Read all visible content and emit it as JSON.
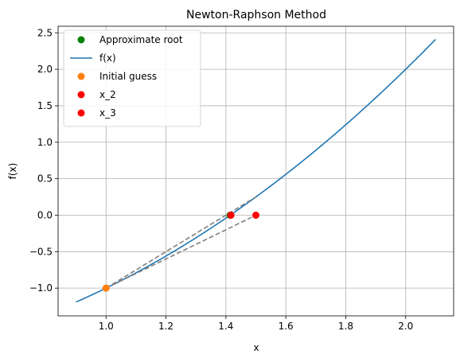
{
  "chart_data": {
    "type": "line",
    "title": "Newton-Raphson Method",
    "xlabel": "x",
    "ylabel": "f(x)",
    "xlim": [
      0.84,
      2.16
    ],
    "ylim": [
      -1.38,
      2.59
    ],
    "grid": true,
    "legend_position": "top-left",
    "x_ticks": [
      1.0,
      1.2,
      1.4,
      1.6,
      1.8,
      2.0
    ],
    "x_tick_labels": [
      "1.0",
      "1.2",
      "1.4",
      "1.6",
      "1.8",
      "2.0"
    ],
    "y_ticks": [
      -1.0,
      -0.5,
      0.0,
      0.5,
      1.0,
      1.5,
      2.0,
      2.5
    ],
    "y_tick_labels": [
      "−1.0",
      "−0.5",
      "0.0",
      "0.5",
      "1.0",
      "1.5",
      "2.0",
      "2.5"
    ],
    "curve": {
      "name": "f(x)",
      "color": "#1f77b4",
      "function": "x^2 - 2",
      "x_range": [
        0.9,
        2.1
      ]
    },
    "tangent_lines": [
      {
        "x": [
          1.0,
          1.5
        ],
        "y": [
          -1.0,
          0.0
        ]
      },
      {
        "x": [
          1.0,
          1.5
        ],
        "y": [
          -1.0,
          0.25
        ]
      }
    ],
    "tangent_color": "#808080",
    "points": [
      {
        "name": "Approximate root",
        "x": 1.4142,
        "y": 0.0,
        "color": "#008000"
      },
      {
        "name": "Initial guess",
        "x": 1.0,
        "y": -1.0,
        "color": "#ff7f0e"
      },
      {
        "name": "x_2",
        "x": 1.5,
        "y": 0.0,
        "color": "#ff0000"
      },
      {
        "name": "x_3",
        "x": 1.4167,
        "y": 0.0,
        "color": "#ff0000"
      }
    ],
    "legend": [
      {
        "label": "Approximate root",
        "kind": "marker",
        "color": "#008000"
      },
      {
        "label": "f(x)",
        "kind": "line",
        "color": "#1f77b4"
      },
      {
        "label": "Initial guess",
        "kind": "marker",
        "color": "#ff7f0e"
      },
      {
        "label": "x_2",
        "kind": "marker",
        "color": "#ff0000"
      },
      {
        "label": "x_3",
        "kind": "marker",
        "color": "#ff0000"
      }
    ]
  }
}
